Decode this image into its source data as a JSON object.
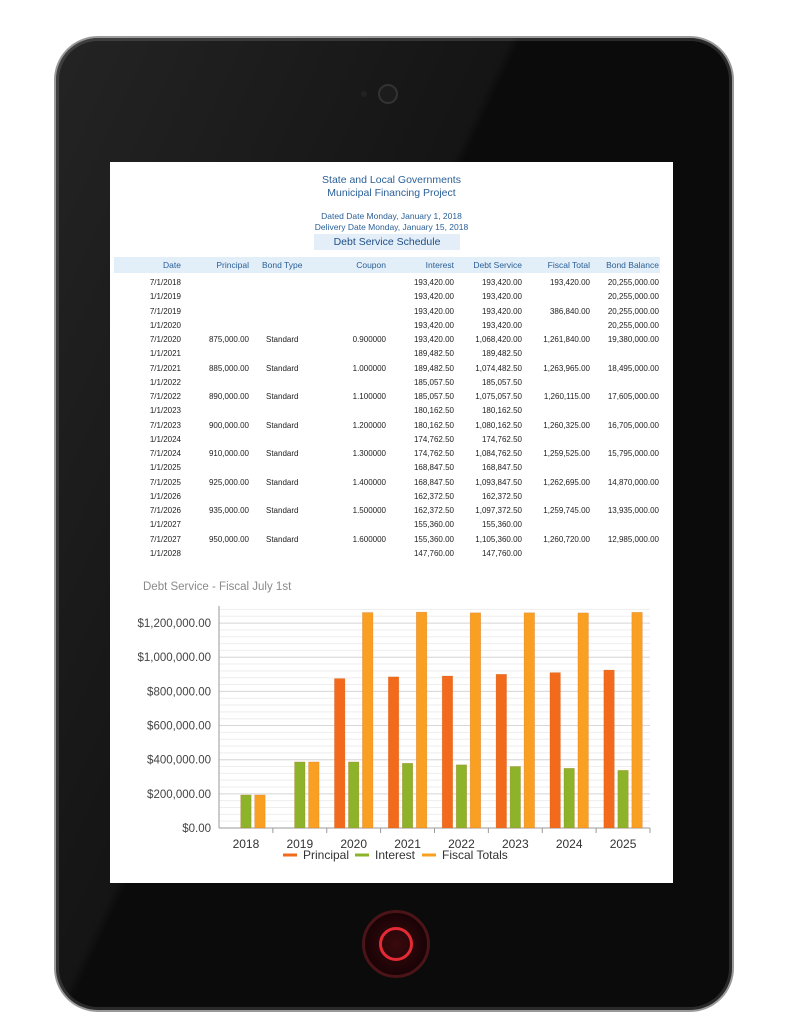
{
  "report": {
    "line1": "State and Local Governments",
    "line2": "Municipal Financing Project",
    "dated": "Dated Date Monday, January 1, 2018",
    "delivery": "Delivery Date Monday, January 15, 2018",
    "schedule_title": "Debt Service Schedule"
  },
  "table": {
    "headers": [
      "Date",
      "Principal",
      "Bond Type",
      "Coupon",
      "Interest",
      "Debt Service",
      "Fiscal Total",
      "Bond Balance"
    ],
    "rows": [
      [
        "7/1/2018",
        "",
        "",
        "",
        "193,420.00",
        "193,420.00",
        "193,420.00",
        "20,255,000.00"
      ],
      [
        "1/1/2019",
        "",
        "",
        "",
        "193,420.00",
        "193,420.00",
        "",
        "20,255,000.00"
      ],
      [
        "7/1/2019",
        "",
        "",
        "",
        "193,420.00",
        "193,420.00",
        "386,840.00",
        "20,255,000.00"
      ],
      [
        "1/1/2020",
        "",
        "",
        "",
        "193,420.00",
        "193,420.00",
        "",
        "20,255,000.00"
      ],
      [
        "7/1/2020",
        "875,000.00",
        "Standard",
        "0.900000",
        "193,420.00",
        "1,068,420.00",
        "1,261,840.00",
        "19,380,000.00"
      ],
      [
        "1/1/2021",
        "",
        "",
        "",
        "189,482.50",
        "189,482.50",
        "",
        ""
      ],
      [
        "7/1/2021",
        "885,000.00",
        "Standard",
        "1.000000",
        "189,482.50",
        "1,074,482.50",
        "1,263,965.00",
        "18,495,000.00"
      ],
      [
        "1/1/2022",
        "",
        "",
        "",
        "185,057.50",
        "185,057.50",
        "",
        ""
      ],
      [
        "7/1/2022",
        "890,000.00",
        "Standard",
        "1.100000",
        "185,057.50",
        "1,075,057.50",
        "1,260,115.00",
        "17,605,000.00"
      ],
      [
        "1/1/2023",
        "",
        "",
        "",
        "180,162.50",
        "180,162.50",
        "",
        ""
      ],
      [
        "7/1/2023",
        "900,000.00",
        "Standard",
        "1.200000",
        "180,162.50",
        "1,080,162.50",
        "1,260,325.00",
        "16,705,000.00"
      ],
      [
        "1/1/2024",
        "",
        "",
        "",
        "174,762.50",
        "174,762.50",
        "",
        ""
      ],
      [
        "7/1/2024",
        "910,000.00",
        "Standard",
        "1.300000",
        "174,762.50",
        "1,084,762.50",
        "1,259,525.00",
        "15,795,000.00"
      ],
      [
        "1/1/2025",
        "",
        "",
        "",
        "168,847.50",
        "168,847.50",
        "",
        ""
      ],
      [
        "7/1/2025",
        "925,000.00",
        "Standard",
        "1.400000",
        "168,847.50",
        "1,093,847.50",
        "1,262,695.00",
        "14,870,000.00"
      ],
      [
        "1/1/2026",
        "",
        "",
        "",
        "162,372.50",
        "162,372.50",
        "",
        ""
      ],
      [
        "7/1/2026",
        "935,000.00",
        "Standard",
        "1.500000",
        "162,372.50",
        "1,097,372.50",
        "1,259,745.00",
        "13,935,000.00"
      ],
      [
        "1/1/2027",
        "",
        "",
        "",
        "155,360.00",
        "155,360.00",
        "",
        ""
      ],
      [
        "7/1/2027",
        "950,000.00",
        "Standard",
        "1.600000",
        "155,360.00",
        "1,105,360.00",
        "1,260,720.00",
        "12,985,000.00"
      ],
      [
        "1/1/2028",
        "",
        "",
        "",
        "147,760.00",
        "147,760.00",
        "",
        ""
      ]
    ]
  },
  "chart_data": {
    "type": "bar",
    "title": "Debt Service - Fiscal July 1st",
    "categories": [
      "2018",
      "2019",
      "2020",
      "2021",
      "2022",
      "2023",
      "2024",
      "2025"
    ],
    "series": [
      {
        "name": "Principal",
        "color": "#f26a1b",
        "values": [
          0,
          0,
          875000,
          885000,
          890000,
          900000,
          910000,
          925000
        ]
      },
      {
        "name": "Interest",
        "color": "#8db32b",
        "values": [
          193420,
          386840,
          386840,
          378965,
          370115,
          360325,
          349525,
          337695
        ]
      },
      {
        "name": "Fiscal Totals",
        "color": "#f9a023",
        "values": [
          193420,
          386840,
          1261840,
          1263965,
          1260115,
          1260325,
          1259525,
          1262695
        ]
      }
    ],
    "y_ticks": [
      "$0.00",
      "$200,000.00",
      "$400,000.00",
      "$600,000.00",
      "$800,000.00",
      "$1,000,000.00",
      "$1,200,000.00"
    ],
    "ylim": [
      0,
      1300000
    ],
    "grid": true,
    "legend": "bottom"
  }
}
